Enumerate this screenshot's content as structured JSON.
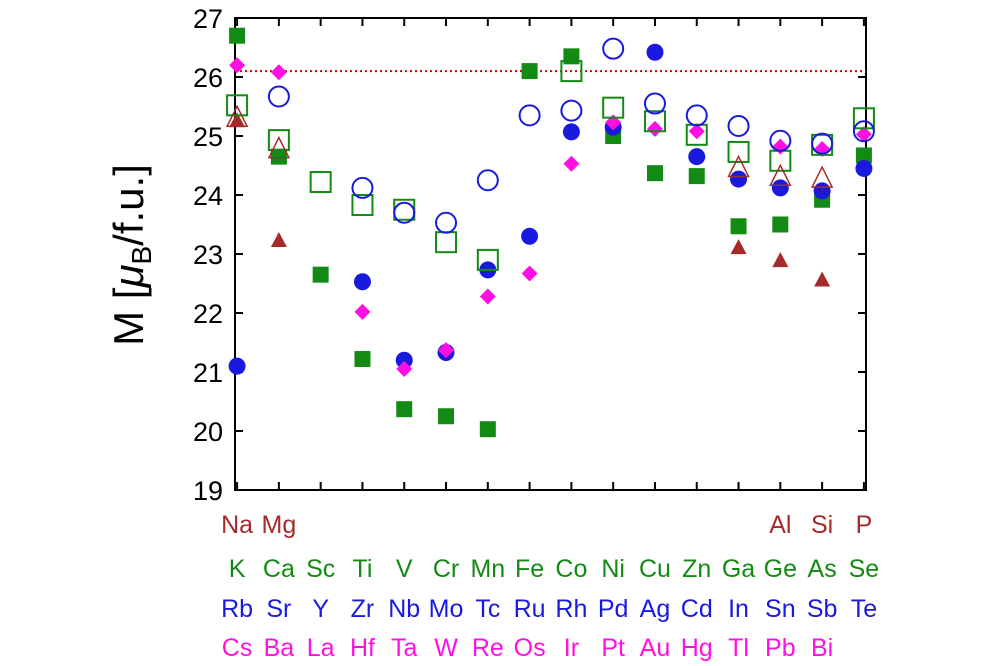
{
  "chart_data": {
    "type": "scatter",
    "ylabel": "M [μB/f.u.]",
    "ylabel_parts": {
      "prefix": "M [",
      "mu": "μ",
      "sub": "B",
      "suffix": "/f.u.]"
    },
    "ylim": [
      19,
      27
    ],
    "yticks": [
      19,
      20,
      21,
      22,
      23,
      24,
      25,
      26,
      27
    ],
    "xlim": [
      -0.05,
      15.05
    ],
    "reference_line": {
      "y": 26.1,
      "color": "#d00000",
      "style": "dotted"
    },
    "element_rows": [
      {
        "color": "#a52a2a",
        "labels": [
          "Na",
          "Mg",
          "",
          "",
          "",
          "",
          "",
          "",
          "",
          "",
          "",
          "",
          "",
          "Al",
          "Si",
          "P",
          ""
        ]
      },
      {
        "color": "#138a13",
        "labels": [
          "K",
          "Ca",
          "Sc",
          "Ti",
          "V",
          "Cr",
          "Mn",
          "Fe",
          "Co",
          "Ni",
          "Cu",
          "Zn",
          "Ga",
          "Ge",
          "As",
          "Se"
        ]
      },
      {
        "color": "#1a1adf",
        "labels": [
          "Rb",
          "Sr",
          "Y",
          "Zr",
          "Nb",
          "Mo",
          "Tc",
          "Ru",
          "Rh",
          "Pd",
          "Ag",
          "Cd",
          "In",
          "Sn",
          "Sb",
          "Te"
        ]
      },
      {
        "color": "#ff10e0",
        "labels": [
          "Cs",
          "Ba",
          "La",
          "Hf",
          "Ta",
          "W",
          "Re",
          "Os",
          "Ir",
          "Pt",
          "Au",
          "Hg",
          "Tl",
          "Pb",
          "Bi",
          ""
        ]
      }
    ],
    "series": [
      {
        "marker": "filled-square",
        "color": "#138a13",
        "points": [
          [
            0,
            26.7
          ],
          [
            1,
            24.65
          ],
          [
            2,
            22.65
          ],
          [
            3,
            21.22
          ],
          [
            4,
            20.37
          ],
          [
            5,
            20.25
          ],
          [
            6,
            20.03
          ],
          [
            7,
            26.1
          ],
          [
            8,
            26.35
          ],
          [
            9,
            25.0
          ],
          [
            10,
            24.37
          ],
          [
            11,
            24.32
          ],
          [
            12,
            23.47
          ],
          [
            13,
            23.5
          ],
          [
            14,
            23.92
          ],
          [
            15,
            24.67
          ]
        ]
      },
      {
        "marker": "open-square",
        "color": "#138a13",
        "points": [
          [
            0,
            25.52
          ],
          [
            1,
            24.93
          ],
          [
            2,
            24.22
          ],
          [
            3,
            23.83
          ],
          [
            4,
            23.75
          ],
          [
            5,
            23.2
          ],
          [
            6,
            22.9
          ],
          [
            8,
            26.1
          ],
          [
            9,
            25.48
          ],
          [
            10,
            25.25
          ],
          [
            11,
            25.02
          ],
          [
            12,
            24.73
          ],
          [
            13,
            24.58
          ],
          [
            14,
            24.85
          ],
          [
            15,
            25.3
          ]
        ]
      },
      {
        "marker": "filled-circle",
        "color": "#1a1adf",
        "points": [
          [
            0,
            21.1
          ],
          [
            3,
            22.53
          ],
          [
            4,
            21.2
          ],
          [
            5,
            21.33
          ],
          [
            6,
            22.73
          ],
          [
            7,
            23.3
          ],
          [
            8,
            25.07
          ],
          [
            9,
            25.15
          ],
          [
            10,
            26.42
          ],
          [
            11,
            24.65
          ],
          [
            12,
            24.27
          ],
          [
            13,
            24.12
          ],
          [
            14,
            24.07
          ],
          [
            15,
            24.45
          ]
        ]
      },
      {
        "marker": "open-circle",
        "color": "#1a1adf",
        "points": [
          [
            1,
            25.67
          ],
          [
            3,
            24.12
          ],
          [
            4,
            23.7
          ],
          [
            5,
            23.53
          ],
          [
            6,
            24.25
          ],
          [
            7,
            25.35
          ],
          [
            8,
            25.43
          ],
          [
            9,
            26.48
          ],
          [
            10,
            25.55
          ],
          [
            11,
            25.35
          ],
          [
            12,
            25.17
          ],
          [
            13,
            24.92
          ],
          [
            14,
            24.87
          ],
          [
            15,
            25.08
          ]
        ]
      },
      {
        "marker": "filled-diamond",
        "color": "#ff10e0",
        "points": [
          [
            0,
            26.2
          ],
          [
            1,
            26.08
          ],
          [
            3,
            22.02
          ],
          [
            4,
            21.05
          ],
          [
            5,
            21.37
          ],
          [
            6,
            22.28
          ],
          [
            7,
            22.67
          ],
          [
            8,
            24.53
          ],
          [
            9,
            25.23
          ],
          [
            10,
            25.12
          ],
          [
            11,
            25.08
          ],
          [
            13,
            24.82
          ],
          [
            14,
            24.78
          ],
          [
            15,
            25.03
          ]
        ]
      },
      {
        "marker": "filled-triangle",
        "color": "#a52a2a",
        "points": [
          [
            0,
            25.25
          ],
          [
            1,
            23.22
          ],
          [
            12,
            23.1
          ],
          [
            13,
            22.88
          ],
          [
            14,
            22.55
          ]
        ]
      },
      {
        "marker": "open-triangle",
        "color": "#a52a2a",
        "points": [
          [
            0,
            25.3
          ],
          [
            1,
            24.77
          ],
          [
            12,
            24.45
          ],
          [
            13,
            24.3
          ],
          [
            14,
            24.27
          ]
        ]
      }
    ]
  }
}
